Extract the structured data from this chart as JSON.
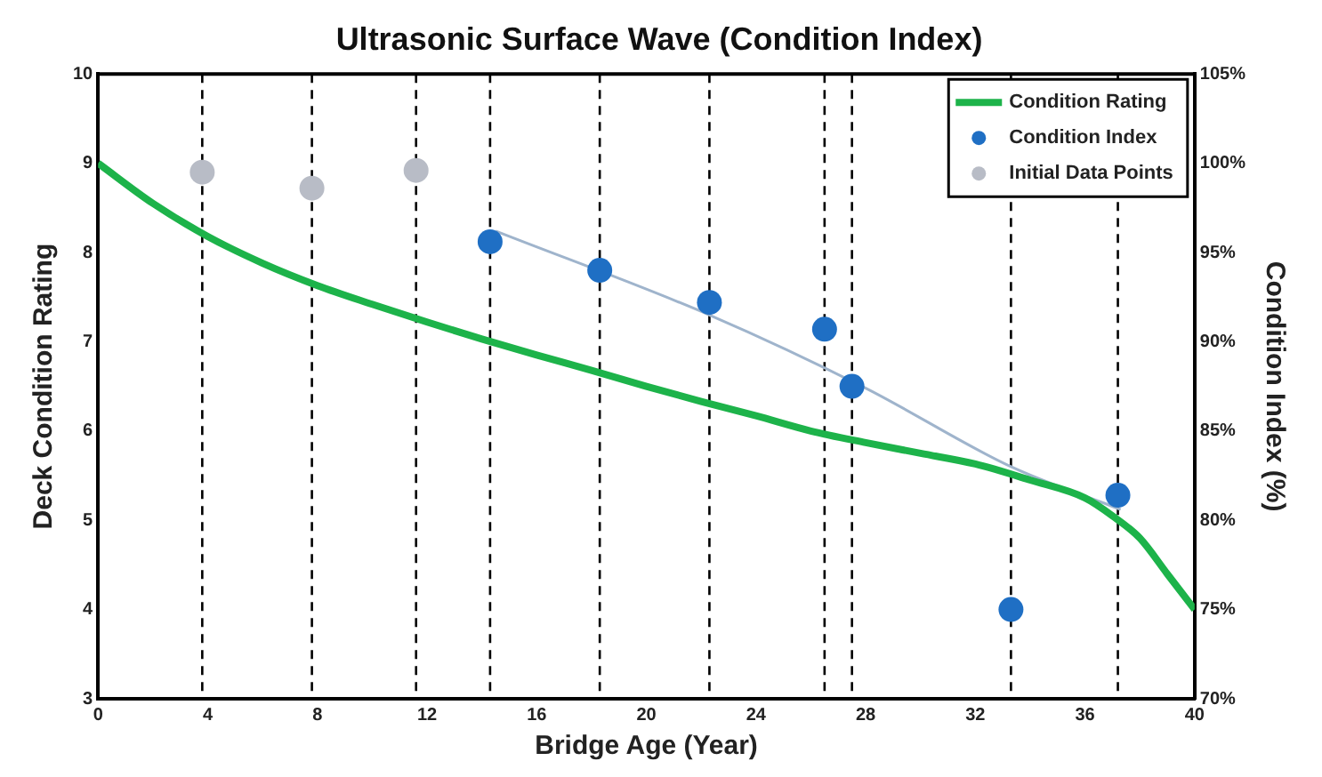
{
  "chart_data": {
    "type": "line",
    "title": "Ultrasonic Surface Wave (Condition Index)",
    "xlabel": "Bridge Age (Year)",
    "ylabel": "Deck Condition Rating",
    "y2label": "Condition Index (%)",
    "xlim": [
      0,
      40
    ],
    "xticks": [
      0,
      4,
      8,
      12,
      16,
      20,
      24,
      28,
      32,
      36,
      40
    ],
    "ylim": [
      3,
      10
    ],
    "yticks": [
      3,
      4,
      5,
      6,
      7,
      8,
      9,
      10
    ],
    "y2lim": [
      70,
      105
    ],
    "y2ticks": [
      {
        "value": 70,
        "label": "70%"
      },
      {
        "value": 75,
        "label": "75%"
      },
      {
        "value": 80,
        "label": "80%"
      },
      {
        "value": 85,
        "label": "85%"
      },
      {
        "value": 90,
        "label": "90%"
      },
      {
        "value": 95,
        "label": "95%"
      },
      {
        "value": 100,
        "label": "100%"
      },
      {
        "value": 105,
        "label": "105%"
      }
    ],
    "legend": "top right",
    "grid": false,
    "series": [
      {
        "name": "Condition Rating",
        "type": "line",
        "color": "#1db34a",
        "marker": "none",
        "x": [
          0,
          2,
          4,
          6,
          8,
          10,
          12,
          14,
          16,
          18,
          20,
          22,
          24,
          26,
          28,
          30,
          32,
          34,
          36,
          37,
          38,
          39,
          40
        ],
        "values": [
          9.0,
          8.55,
          8.18,
          7.88,
          7.63,
          7.42,
          7.22,
          7.03,
          6.85,
          6.68,
          6.5,
          6.33,
          6.17,
          6.0,
          5.87,
          5.75,
          5.63,
          5.45,
          5.25,
          5.05,
          4.8,
          4.4,
          4.0
        ]
      },
      {
        "name": "Condition Index",
        "type": "scatter",
        "axis": "y2",
        "color": "#1f6fc4",
        "marker": "circle",
        "x": [
          14.3,
          18.3,
          22.3,
          26.5,
          27.5,
          33.3,
          37.2
        ],
        "values": [
          95.6,
          94.0,
          92.2,
          90.7,
          87.5,
          75.0,
          81.4
        ]
      },
      {
        "name": "Initial Data Points",
        "type": "scatter",
        "axis": "y2",
        "color": "#b8bcc6",
        "marker": "circle",
        "x": [
          3.8,
          7.8,
          11.6
        ],
        "values": [
          99.5,
          98.6,
          99.6
        ]
      },
      {
        "type": "line",
        "axis": "y2",
        "color": "#9fb4cc",
        "marker": "none",
        "x": [
          14.5,
          22.3,
          28,
          33.3,
          37.3
        ],
        "values": [
          96.2,
          91.5,
          87.4,
          83.0,
          80.6
        ]
      }
    ],
    "ref_lines": [
      {
        "axis": "x",
        "value": 3.8,
        "line_style": "dashed",
        "color": "#000000"
      },
      {
        "axis": "x",
        "value": 7.8,
        "line_style": "dashed",
        "color": "#000000"
      },
      {
        "axis": "x",
        "value": 11.6,
        "line_style": "dashed",
        "color": "#000000"
      },
      {
        "axis": "x",
        "value": 14.3,
        "line_style": "dashed",
        "color": "#000000"
      },
      {
        "axis": "x",
        "value": 18.3,
        "line_style": "dashed",
        "color": "#000000"
      },
      {
        "axis": "x",
        "value": 22.3,
        "line_style": "dashed",
        "color": "#000000"
      },
      {
        "axis": "x",
        "value": 26.5,
        "line_style": "dashed",
        "color": "#000000"
      },
      {
        "axis": "x",
        "value": 27.5,
        "line_style": "dashed",
        "color": "#000000"
      },
      {
        "axis": "x",
        "value": 33.3,
        "line_style": "dashed",
        "color": "#000000"
      },
      {
        "axis": "x",
        "value": 37.2,
        "line_style": "dashed",
        "color": "#000000"
      }
    ]
  }
}
